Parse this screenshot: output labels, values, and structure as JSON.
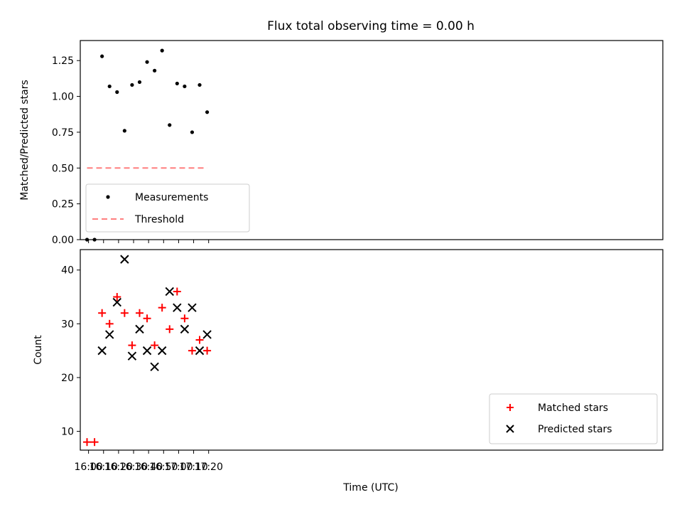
{
  "chart_data": [
    {
      "type": "scatter",
      "title": "Flux total observing time = 0.00 h",
      "xlabel": "",
      "ylabel": "Matched/Predicted stars",
      "x": [
        "15:59",
        "16:04",
        "16:09",
        "16:14",
        "16:19",
        "16:24",
        "16:29",
        "16:34",
        "16:39",
        "16:44",
        "16:49",
        "16:54",
        "16:59",
        "17:04",
        "17:09",
        "17:14",
        "17:19"
      ],
      "xlim_minutes": [
        954.5,
        1342.5
      ],
      "ylim": [
        0,
        1.39
      ],
      "yticks": [
        0.0,
        0.25,
        0.5,
        0.75,
        1.0,
        1.25
      ],
      "ytick_labels": [
        "0.00",
        "0.25",
        "0.50",
        "0.75",
        "1.00",
        "1.25"
      ],
      "series": [
        {
          "name": "Measurements",
          "color": "#000000",
          "marker": "dot",
          "values": [
            0.0,
            0.0,
            1.28,
            1.07,
            1.03,
            0.76,
            1.08,
            1.1,
            1.24,
            1.18,
            1.32,
            0.8,
            1.09,
            1.07,
            0.75,
            1.08,
            0.89
          ]
        },
        {
          "name": "Threshold",
          "color": "#ff7f7f",
          "marker": "dashed-line",
          "x_range": [
            "15:59",
            "17:19"
          ],
          "value": 0.5
        }
      ],
      "legend": {
        "position": "lower-left",
        "entries": [
          "Measurements",
          "Threshold"
        ]
      }
    },
    {
      "type": "scatter",
      "title": "",
      "xlabel": "Time (UTC)",
      "ylabel": "Count",
      "x": [
        "15:59",
        "16:04",
        "16:09",
        "16:14",
        "16:19",
        "16:24",
        "16:29",
        "16:34",
        "16:39",
        "16:44",
        "16:49",
        "16:54",
        "16:59",
        "17:04",
        "17:09",
        "17:14",
        "17:19"
      ],
      "xlim_minutes": [
        954.5,
        1342.5
      ],
      "ylim": [
        6.5,
        43.8
      ],
      "yticks": [
        10,
        20,
        30,
        40
      ],
      "ytick_labels": [
        "10",
        "20",
        "30",
        "40"
      ],
      "xticks_minutes": [
        960,
        970,
        980,
        990,
        1000,
        1010,
        1020,
        1030,
        1040
      ],
      "xtick_labels": [
        "16:00",
        "16:10",
        "16:20",
        "16:30",
        "16:40",
        "16:50",
        "17:00",
        "17:10",
        "17:20"
      ],
      "series": [
        {
          "name": "Matched stars",
          "color": "#ff0000",
          "marker": "plus",
          "values": [
            8,
            8,
            32,
            30,
            35,
            32,
            26,
            32,
            31,
            26,
            33,
            29,
            36,
            31,
            25,
            27,
            25
          ]
        },
        {
          "name": "Predicted stars",
          "color": "#000000",
          "marker": "x",
          "values": [
            null,
            null,
            25,
            28,
            34,
            42,
            24,
            29,
            25,
            22,
            25,
            36,
            33,
            29,
            33,
            25,
            28
          ]
        }
      ],
      "legend": {
        "position": "lower-right",
        "entries": [
          "Matched stars",
          "Predicted stars"
        ]
      }
    }
  ]
}
